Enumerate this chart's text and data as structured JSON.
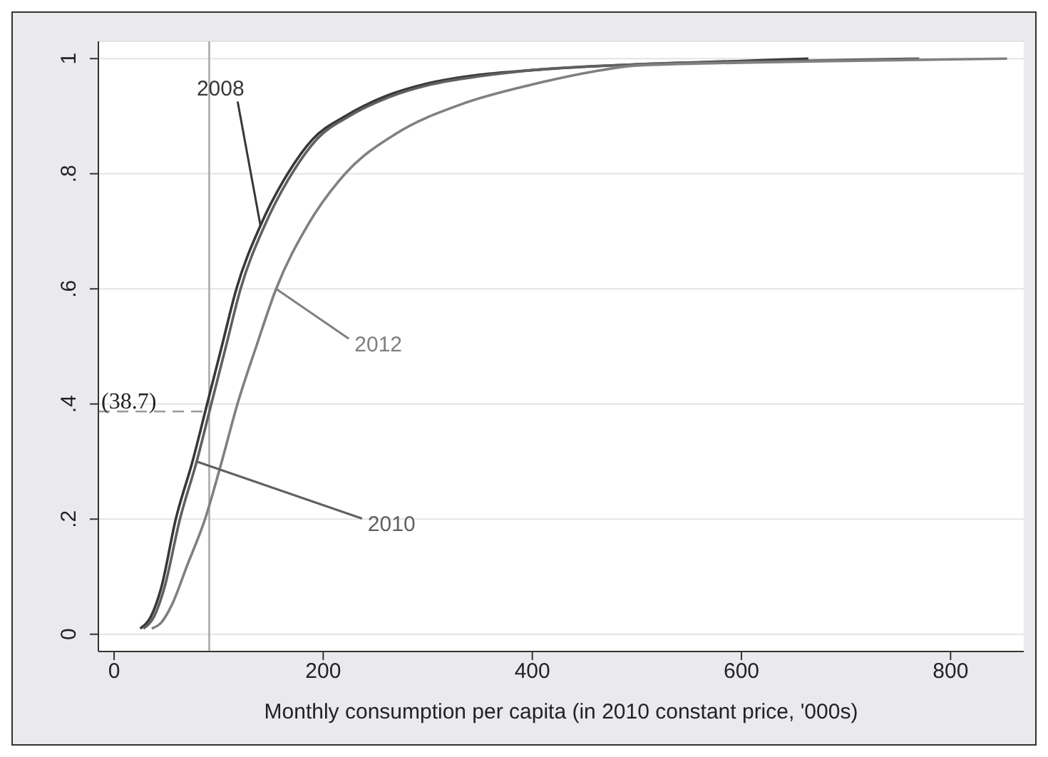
{
  "chart_data": {
    "type": "line",
    "xlabel": "Monthly consumption per capita (in 2010 constant price, '000s)",
    "xlim": [
      -15,
      870
    ],
    "xticks": [
      0,
      200,
      400,
      600,
      800
    ],
    "ylim": [
      -0.03,
      1.03
    ],
    "yticks": [
      0,
      {
        "value": 0.2,
        "label": ".2"
      },
      {
        "value": 0.4,
        "label": ".4"
      },
      {
        "value": 0.6,
        "label": ".6"
      },
      {
        "value": 0.8,
        "label": ".8"
      },
      1
    ],
    "grid": "y",
    "marker": "none",
    "line_style": "solid",
    "ref_lines": [
      {
        "axis": "x",
        "value": 91,
        "color": "#aaaaaa",
        "line_style": "solid"
      },
      {
        "axis": "y",
        "value": 0.387,
        "label": "(38.7)",
        "color": "#999999",
        "line_style": "dashed"
      }
    ],
    "series": [
      {
        "name": "2008",
        "color": "#383838",
        "x": [
          25,
          35,
          45,
          59,
          75,
          89,
          103,
          117,
          140,
          166,
          190,
          221,
          260,
          300,
          350,
          400,
          500,
          600,
          664
        ],
        "values": [
          0.01,
          0.03,
          0.08,
          0.2,
          0.3,
          0.4,
          0.5,
          0.6,
          0.71,
          0.8,
          0.86,
          0.9,
          0.935,
          0.957,
          0.972,
          0.98,
          0.99,
          0.996,
          1
        ]
      },
      {
        "name": "2010",
        "color": "#606060",
        "x": [
          28,
          38,
          48,
          63,
          79,
          93,
          107,
          121,
          144,
          170,
          194,
          225,
          263,
          303,
          352,
          400,
          500,
          650,
          770
        ],
        "values": [
          0.01,
          0.03,
          0.08,
          0.2,
          0.3,
          0.4,
          0.5,
          0.6,
          0.71,
          0.8,
          0.86,
          0.9,
          0.933,
          0.955,
          0.97,
          0.98,
          0.99,
          0.996,
          1
        ]
      },
      {
        "name": "2012",
        "color": "#808080",
        "x": [
          36,
          45,
          55,
          70,
          87,
          103,
          118,
          136,
          155,
          185,
          221,
          270,
          331,
          400,
          460,
          500,
          600,
          700,
          854
        ],
        "values": [
          0.01,
          0.02,
          0.05,
          0.12,
          0.2,
          0.3,
          0.4,
          0.5,
          0.6,
          0.71,
          0.8,
          0.87,
          0.92,
          0.955,
          0.978,
          0.988,
          0.993,
          0.996,
          1
        ]
      }
    ]
  }
}
